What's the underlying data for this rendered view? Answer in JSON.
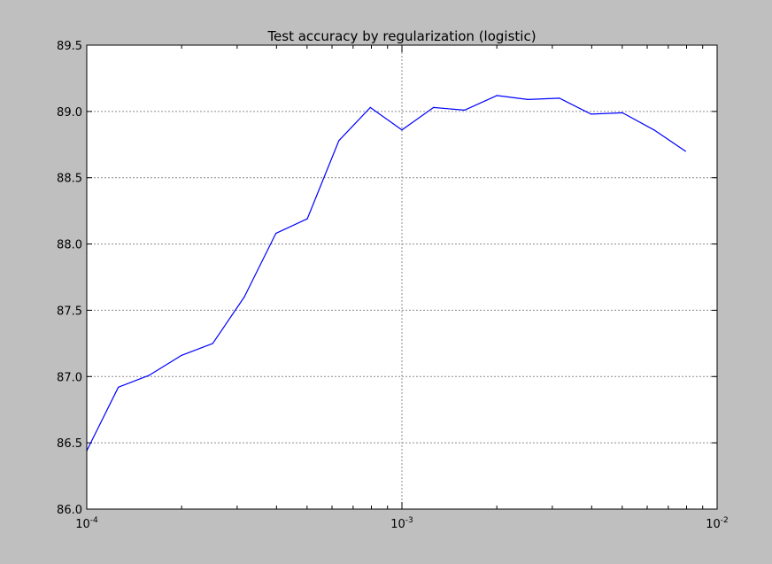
{
  "chart_data": {
    "type": "line",
    "title": "Test accuracy by regularization (logistic)",
    "xlabel": "",
    "ylabel": "",
    "xscale": "log",
    "xlim": [
      0.0001,
      0.01
    ],
    "ylim": [
      86.0,
      89.5
    ],
    "grid": true,
    "line_color": "#0000ff",
    "background_color": "#bfbfbf",
    "plot_background": "#ffffff",
    "x_ticks": [
      {
        "value": 0.0001,
        "base": "10",
        "exponent": "-4"
      },
      {
        "value": 0.001,
        "base": "10",
        "exponent": "-3"
      },
      {
        "value": 0.01,
        "base": "10",
        "exponent": "-2"
      }
    ],
    "y_ticks": [
      {
        "value": 86.0,
        "label": "86.0"
      },
      {
        "value": 86.5,
        "label": "86.5"
      },
      {
        "value": 87.0,
        "label": "87.0"
      },
      {
        "value": 87.5,
        "label": "87.5"
      },
      {
        "value": 88.0,
        "label": "88.0"
      },
      {
        "value": 88.5,
        "label": "88.5"
      },
      {
        "value": 89.0,
        "label": "89.0"
      },
      {
        "value": 89.5,
        "label": "89.5"
      }
    ],
    "series": [
      {
        "x": [
          0.0001,
          0.000126,
          0.000158,
          0.0002,
          0.000251,
          0.000316,
          0.000398,
          0.000501,
          0.000631,
          0.000794,
          0.001,
          0.00126,
          0.00158,
          0.002,
          0.00251,
          0.00316,
          0.00398,
          0.00501,
          0.00631,
          0.00794
        ],
        "y": [
          86.44,
          86.92,
          87.01,
          87.16,
          87.25,
          87.6,
          88.08,
          88.19,
          88.78,
          89.03,
          88.86,
          89.03,
          89.01,
          89.12,
          89.09,
          89.1,
          88.98,
          88.99,
          88.86,
          88.7
        ]
      }
    ]
  }
}
